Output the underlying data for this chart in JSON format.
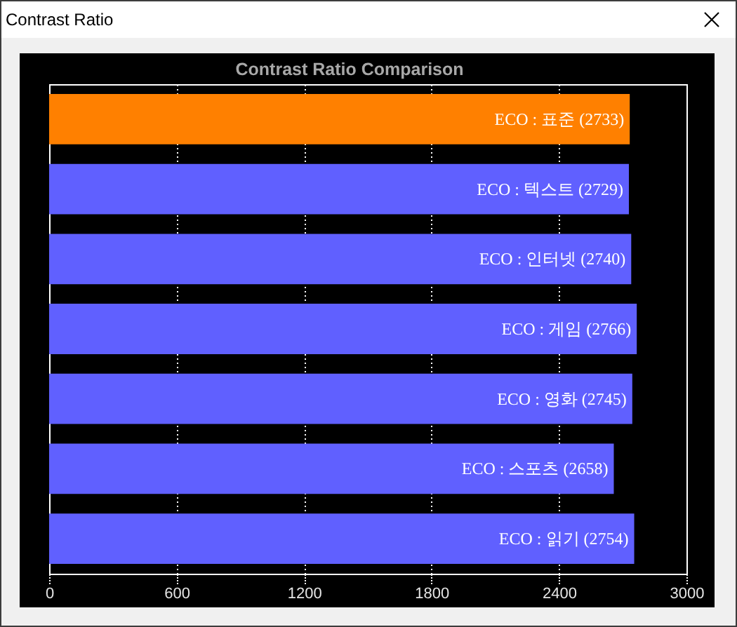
{
  "chart_data": {
    "type": "bar",
    "orientation": "horizontal",
    "title": "Contrast Ratio Comparison",
    "annotations": [
      "Contrast Ratio"
    ],
    "categories": [
      "ECO : 표준",
      "ECO : 텍스트",
      "ECO : 인터넷",
      "ECO : 게임",
      "ECO : 영화",
      "ECO : 스포츠",
      "ECO : 읽기"
    ],
    "values": [
      2733,
      2729,
      2740,
      2766,
      2745,
      2658,
      2754
    ],
    "value_labels": [
      "(2733)",
      "(2729)",
      "(2740)",
      "(2766)",
      "(2745)",
      "(2658)",
      "(2754)"
    ],
    "colors": [
      "#ff8000",
      "#6060ff",
      "#6060ff",
      "#6060ff",
      "#6060ff",
      "#6060ff",
      "#6060ff"
    ],
    "xlim": [
      0,
      3000
    ],
    "xticks": [
      0,
      600,
      1200,
      1800,
      2400,
      3000
    ],
    "grid": "x",
    "tick_labels": "x"
  }
}
